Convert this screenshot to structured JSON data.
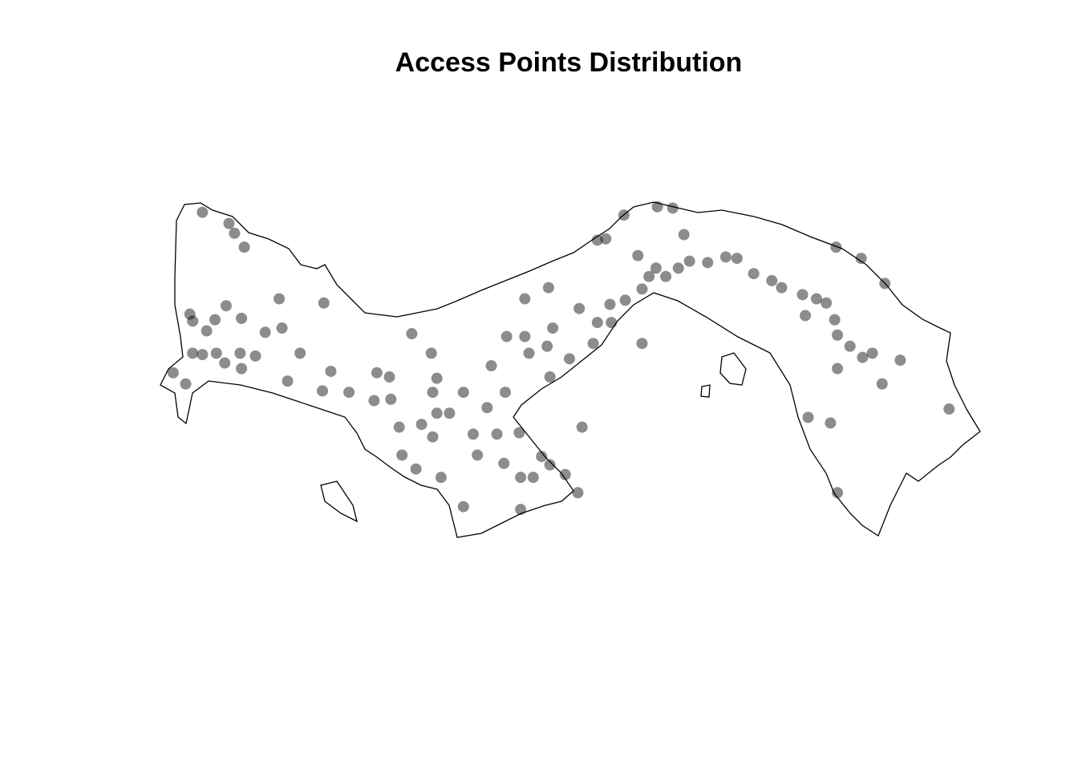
{
  "chart_data": {
    "type": "scatter",
    "title": "Access Points Distribution",
    "color": "#000000",
    "opacity": 0.45,
    "xlim": [
      -83.1,
      -77.1
    ],
    "ylim": [
      7.0,
      9.8
    ],
    "x": [
      -82.73,
      -82.54,
      -82.5,
      -82.43,
      -82.18,
      -82.82,
      -82.8,
      -82.7,
      -82.64,
      -82.56,
      -82.45,
      -82.8,
      -82.73,
      -82.63,
      -82.57,
      -82.46,
      -82.45,
      -82.35,
      -82.94,
      -82.85,
      -82.28,
      -82.16,
      -82.03,
      -82.12,
      -81.86,
      -81.87,
      -81.81,
      -81.68,
      -81.5,
      -81.38,
      -81.32,
      -81.23,
      -81.09,
      -81.05,
      -81.08,
      -81.05,
      -80.96,
      -81.16,
      -81.08,
      -81.3,
      -81.2,
      -81.02,
      -80.86,
      -80.86,
      -80.79,
      -80.76,
      -80.69,
      -80.66,
      -80.62,
      -80.57,
      -80.56,
      -80.55,
      -80.46,
      -80.42,
      -80.39,
      -80.45,
      -80.45,
      -80.36,
      -80.3,
      -80.24,
      -80.13,
      -80.04,
      -80.24,
      -80.26,
      -80.22,
      -80.1,
      -80.01,
      -80.25,
      -80.42,
      -80.03,
      -79.93,
      -79.9,
      -79.81,
      -79.7,
      -79.58,
      -79.53,
      -79.48,
      -79.61,
      -79.9,
      -79.84,
      -79.58,
      -79.41,
      -79.32,
      -79.24,
      -79.11,
      -79.28,
      -79.36,
      -79.47,
      -79.71,
      -78.98,
      -78.9,
      -78.78,
      -78.65,
      -78.58,
      -78.43,
      -78.33,
      -78.26,
      -78.41,
      -78.2,
      -78.18,
      -78.09,
      -78.0,
      -77.93,
      -78.18,
      -77.86,
      -77.73,
      -78.19,
      -78.01,
      -77.84,
      -77.38,
      -78.23,
      -78.39,
      -78.18,
      -81.48,
      -81.39,
      -79.8
    ],
    "y": [
      9.52,
      9.44,
      9.37,
      9.27,
      8.9,
      8.79,
      8.74,
      8.67,
      8.75,
      8.85,
      8.76,
      8.51,
      8.5,
      8.51,
      8.44,
      8.51,
      8.4,
      8.49,
      8.37,
      8.29,
      8.66,
      8.69,
      8.51,
      8.31,
      8.87,
      8.24,
      8.38,
      8.23,
      8.17,
      8.18,
      7.98,
      8.65,
      8.51,
      8.33,
      8.23,
      8.08,
      8.08,
      8.0,
      7.91,
      7.78,
      7.68,
      7.62,
      7.41,
      8.23,
      7.93,
      7.78,
      8.12,
      8.42,
      7.93,
      7.72,
      8.23,
      8.63,
      7.94,
      8.63,
      8.51,
      7.62,
      7.39,
      7.62,
      7.77,
      7.71,
      7.64,
      7.51,
      8.34,
      8.56,
      8.69,
      8.47,
      7.98,
      8.98,
      8.9,
      8.83,
      8.58,
      8.73,
      8.86,
      8.89,
      8.97,
      9.06,
      9.12,
      9.21,
      9.32,
      9.33,
      8.58,
      9.06,
      9.12,
      9.17,
      9.16,
      9.36,
      9.55,
      9.56,
      9.5,
      9.2,
      9.19,
      9.08,
      9.03,
      8.98,
      8.93,
      8.9,
      8.87,
      8.78,
      8.75,
      8.64,
      8.56,
      8.48,
      8.51,
      8.4,
      8.29,
      8.46,
      9.27,
      9.19,
      9.01,
      8.11,
      8.01,
      8.05,
      7.51,
      8.37,
      8.34,
      8.73
    ]
  }
}
